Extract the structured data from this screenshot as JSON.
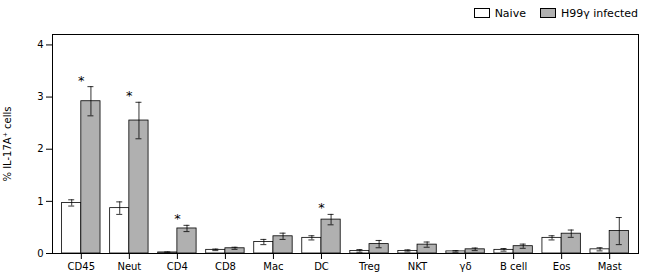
{
  "chart_data": {
    "type": "bar",
    "categories": [
      "CD45",
      "Neut",
      "CD4",
      "CD8",
      "Mac",
      "DC",
      "Treg",
      "NKT",
      "γδ",
      "B cell",
      "Eos",
      "Mast"
    ],
    "series": [
      {
        "name": "Naive",
        "color": "#ffffff",
        "values": [
          0.97,
          0.87,
          0.02,
          0.07,
          0.22,
          0.3,
          0.05,
          0.05,
          0.04,
          0.07,
          0.3,
          0.08
        ],
        "errors": [
          0.06,
          0.12,
          0.01,
          0.015,
          0.05,
          0.04,
          0.025,
          0.02,
          0.015,
          0.025,
          0.04,
          0.03
        ]
      },
      {
        "name": "H99γ infected",
        "color": "#b0b0b0",
        "values": [
          2.92,
          2.55,
          0.48,
          0.1,
          0.33,
          0.65,
          0.18,
          0.17,
          0.08,
          0.14,
          0.38,
          0.43
        ],
        "errors": [
          0.28,
          0.35,
          0.06,
          0.02,
          0.06,
          0.1,
          0.07,
          0.05,
          0.025,
          0.04,
          0.07,
          0.26
        ]
      }
    ],
    "ylabel": "% IL-17A⁺ cells",
    "ylim": [
      0,
      4.2
    ],
    "yticks": [
      0,
      1,
      2,
      3,
      4
    ],
    "grid": false,
    "legend": "upper right",
    "annotations": [
      {
        "text": "*",
        "category": "CD45"
      },
      {
        "text": "*",
        "category": "Neut"
      },
      {
        "text": "*",
        "category": "CD4"
      },
      {
        "text": "*",
        "category": "DC"
      }
    ]
  }
}
